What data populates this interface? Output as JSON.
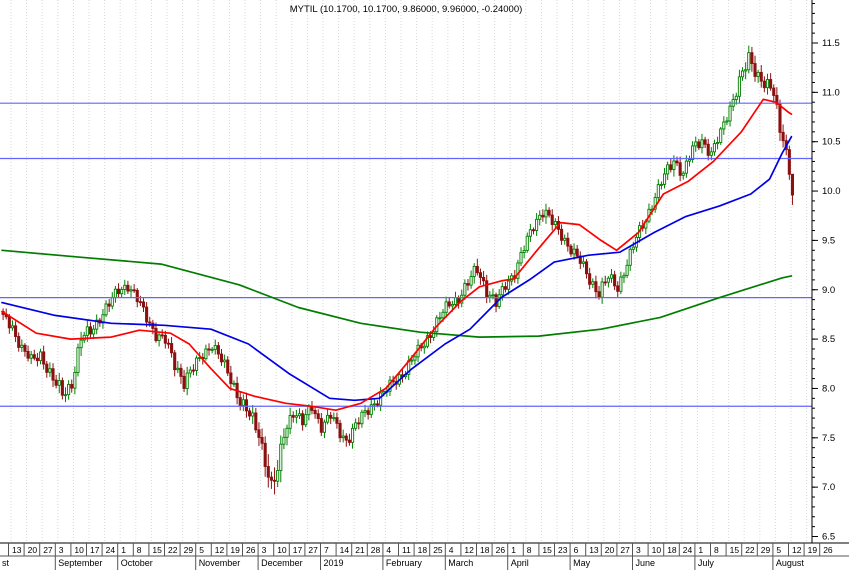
{
  "window": {
    "title": "MYTIL (10.1700, 10.1700, 9.86000, 9.96000, -0.24000)"
  },
  "chart_data": {
    "type": "candlestick",
    "symbol": "MYTIL",
    "quote": {
      "open": "10.1700",
      "high": "10.1700",
      "low": "9.86000",
      "close": "9.96000",
      "change": "-0.24000"
    },
    "y_axis": {
      "labels": [
        "11.5",
        "11.0",
        "10.5",
        "10.0",
        "9.5",
        "9.0",
        "8.5",
        "8.0",
        "7.5",
        "7.0",
        "6.5"
      ],
      "label_values": [
        11.5,
        11.0,
        10.5,
        10.0,
        9.5,
        9.0,
        8.5,
        8.0,
        7.5,
        7.0,
        6.5
      ],
      "minor_step": 0.1,
      "ylim": [
        6.43,
        11.94
      ]
    },
    "x_axis": {
      "week_ticks": [
        "13",
        "20",
        "27",
        "3",
        "10",
        "17",
        "24",
        "1",
        "8",
        "15",
        "22",
        "29",
        "5",
        "12",
        "19",
        "26",
        "3",
        "10",
        "17",
        "27",
        "7",
        "14",
        "21",
        "28",
        "4",
        "11",
        "18",
        "25",
        "4",
        "12",
        "18",
        "26",
        "1",
        "8",
        "15",
        "23",
        "6",
        "13",
        "20",
        "27",
        "3",
        "10",
        "18",
        "24",
        "1",
        "8",
        "15",
        "22",
        "29",
        "5",
        "12",
        "19",
        "26"
      ],
      "months": [
        {
          "label": "st",
          "weeks": 3
        },
        {
          "label": "September",
          "weeks": 4
        },
        {
          "label": "October",
          "weeks": 5
        },
        {
          "label": "November",
          "weeks": 4
        },
        {
          "label": "December",
          "weeks": 4
        },
        {
          "label": "2019",
          "weeks": 4
        },
        {
          "label": "February",
          "weeks": 4
        },
        {
          "label": "March",
          "weeks": 4
        },
        {
          "label": "April",
          "weeks": 4
        },
        {
          "label": "May",
          "weeks": 4
        },
        {
          "label": "June",
          "weeks": 4
        },
        {
          "label": "July",
          "weeks": 5
        },
        {
          "label": "August",
          "weeks": 4
        }
      ]
    },
    "levels": [
      10.89,
      10.33,
      8.92,
      7.82
    ],
    "total_days": 254,
    "first_open": 8.78,
    "price_keyframes": [
      [
        0,
        8.75,
        1
      ],
      [
        3,
        8.62,
        1
      ],
      [
        6,
        8.4,
        1
      ],
      [
        9,
        8.28,
        1
      ],
      [
        12,
        8.35,
        1
      ],
      [
        16,
        8.08,
        1.2
      ],
      [
        19,
        7.95,
        1.4
      ],
      [
        22,
        8.05,
        1
      ],
      [
        25,
        8.5,
        1.4
      ],
      [
        28,
        8.58,
        1
      ],
      [
        31,
        8.72,
        1
      ],
      [
        34,
        8.85,
        1
      ],
      [
        37,
        9.0,
        1
      ],
      [
        40,
        9.05,
        1
      ],
      [
        43,
        8.9,
        1
      ],
      [
        46,
        8.72,
        1
      ],
      [
        49,
        8.55,
        1
      ],
      [
        52,
        8.48,
        1
      ],
      [
        55,
        8.25,
        1.2
      ],
      [
        58,
        8.08,
        1.3
      ],
      [
        61,
        8.2,
        1
      ],
      [
        64,
        8.35,
        1
      ],
      [
        67,
        8.45,
        1
      ],
      [
        70,
        8.28,
        1
      ],
      [
        73,
        8.1,
        1.2
      ],
      [
        76,
        7.88,
        1.2
      ],
      [
        79,
        7.72,
        1.3
      ],
      [
        82,
        7.55,
        1.5
      ],
      [
        84,
        7.28,
        2
      ],
      [
        86,
        7.0,
        2.2
      ],
      [
        88,
        7.15,
        2.4
      ],
      [
        90,
        7.55,
        1.6
      ],
      [
        93,
        7.78,
        1.2
      ],
      [
        96,
        7.65,
        1
      ],
      [
        99,
        7.82,
        1
      ],
      [
        102,
        7.62,
        1
      ],
      [
        105,
        7.72,
        1
      ],
      [
        108,
        7.55,
        1
      ],
      [
        110,
        7.48,
        1.2
      ],
      [
        113,
        7.62,
        1
      ],
      [
        116,
        7.75,
        1
      ],
      [
        119,
        7.86,
        1
      ],
      [
        122,
        7.95,
        1
      ],
      [
        125,
        8.06,
        1
      ],
      [
        128,
        8.15,
        1
      ],
      [
        131,
        8.28,
        1
      ],
      [
        134,
        8.42,
        1
      ],
      [
        137,
        8.56,
        1
      ],
      [
        140,
        8.72,
        1
      ],
      [
        143,
        8.86,
        1
      ],
      [
        146,
        8.92,
        1
      ],
      [
        149,
        9.06,
        1
      ],
      [
        152,
        9.22,
        1.3
      ],
      [
        155,
        9.0,
        1.2
      ],
      [
        158,
        8.85,
        1
      ],
      [
        161,
        9.05,
        1
      ],
      [
        164,
        9.18,
        1
      ],
      [
        167,
        9.42,
        1
      ],
      [
        170,
        9.65,
        1
      ],
      [
        173,
        9.82,
        1.3
      ],
      [
        176,
        9.68,
        1
      ],
      [
        179,
        9.55,
        1
      ],
      [
        182,
        9.42,
        1
      ],
      [
        185,
        9.28,
        1
      ],
      [
        188,
        9.1,
        1
      ],
      [
        191,
        8.98,
        1.2
      ],
      [
        194,
        9.12,
        1
      ],
      [
        197,
        9.02,
        1
      ],
      [
        200,
        9.28,
        1
      ],
      [
        203,
        9.52,
        1
      ],
      [
        206,
        9.72,
        1
      ],
      [
        209,
        9.95,
        1
      ],
      [
        212,
        10.15,
        1
      ],
      [
        215,
        10.32,
        1.2
      ],
      [
        218,
        10.18,
        1
      ],
      [
        221,
        10.42,
        1
      ],
      [
        224,
        10.52,
        1
      ],
      [
        227,
        10.38,
        1
      ],
      [
        230,
        10.58,
        1
      ],
      [
        233,
        10.85,
        1
      ],
      [
        236,
        11.12,
        1.2
      ],
      [
        239,
        11.32,
        1.5
      ],
      [
        242,
        11.18,
        1.3
      ],
      [
        245,
        11.08,
        1.2
      ],
      [
        247,
        10.98,
        1.2
      ],
      [
        249,
        10.6,
        1.6
      ],
      [
        251,
        10.42,
        1.3
      ],
      [
        252,
        10.17,
        1
      ],
      [
        253,
        9.96,
        1
      ]
    ],
    "last_candle": {
      "open": 10.17,
      "high": 10.17,
      "low": 9.86,
      "close": 9.96
    },
    "moving_averages": [
      {
        "name": "ma-slow-green",
        "color": "#007d00",
        "points": [
          [
            0,
            9.4
          ],
          [
            25,
            9.33
          ],
          [
            51,
            9.26
          ],
          [
            76,
            9.05
          ],
          [
            95,
            8.82
          ],
          [
            115,
            8.66
          ],
          [
            134,
            8.57
          ],
          [
            153,
            8.52
          ],
          [
            172,
            8.53
          ],
          [
            192,
            8.6
          ],
          [
            211,
            8.72
          ],
          [
            230,
            8.92
          ],
          [
            250,
            9.12
          ],
          [
            253,
            9.14
          ]
        ]
      },
      {
        "name": "ma-mid-blue",
        "color": "#0000e6",
        "points": [
          [
            0,
            8.87
          ],
          [
            17,
            8.74
          ],
          [
            35,
            8.66
          ],
          [
            52,
            8.64
          ],
          [
            67,
            8.6
          ],
          [
            79,
            8.45
          ],
          [
            92,
            8.15
          ],
          [
            105,
            7.9
          ],
          [
            113,
            7.88
          ],
          [
            121,
            7.9
          ],
          [
            131,
            8.19
          ],
          [
            142,
            8.45
          ],
          [
            150,
            8.6
          ],
          [
            160,
            8.92
          ],
          [
            169,
            9.1
          ],
          [
            177,
            9.28
          ],
          [
            188,
            9.35
          ],
          [
            198,
            9.38
          ],
          [
            209,
            9.58
          ],
          [
            219,
            9.74
          ],
          [
            230,
            9.85
          ],
          [
            240,
            9.97
          ],
          [
            246,
            10.12
          ],
          [
            250,
            10.38
          ],
          [
            253,
            10.55
          ]
        ]
      },
      {
        "name": "ma-fast-red",
        "color": "#ff0000",
        "points": [
          [
            0,
            8.78
          ],
          [
            11,
            8.56
          ],
          [
            22,
            8.5
          ],
          [
            35,
            8.52
          ],
          [
            44,
            8.59
          ],
          [
            54,
            8.56
          ],
          [
            60,
            8.45
          ],
          [
            67,
            8.2
          ],
          [
            73,
            8.0
          ],
          [
            81,
            7.92
          ],
          [
            91,
            7.85
          ],
          [
            99,
            7.82
          ],
          [
            107,
            7.78
          ],
          [
            115,
            7.85
          ],
          [
            123,
            8.0
          ],
          [
            131,
            8.3
          ],
          [
            139,
            8.62
          ],
          [
            147,
            8.88
          ],
          [
            153,
            9.03
          ],
          [
            160,
            9.09
          ],
          [
            164,
            9.11
          ],
          [
            171,
            9.38
          ],
          [
            179,
            9.68
          ],
          [
            185,
            9.66
          ],
          [
            192,
            9.5
          ],
          [
            197,
            9.4
          ],
          [
            204,
            9.58
          ],
          [
            212,
            9.97
          ],
          [
            220,
            10.1
          ],
          [
            228,
            10.3
          ],
          [
            237,
            10.6
          ],
          [
            244,
            10.93
          ],
          [
            248,
            10.9
          ],
          [
            252,
            10.8
          ],
          [
            253,
            10.78
          ]
        ]
      }
    ],
    "colors": {
      "up": "#008000",
      "down": "#8b1111",
      "level": "#6464ff",
      "grid": "#d8d8d8",
      "axis_text": "#000000",
      "strip_line": "#555555"
    }
  }
}
